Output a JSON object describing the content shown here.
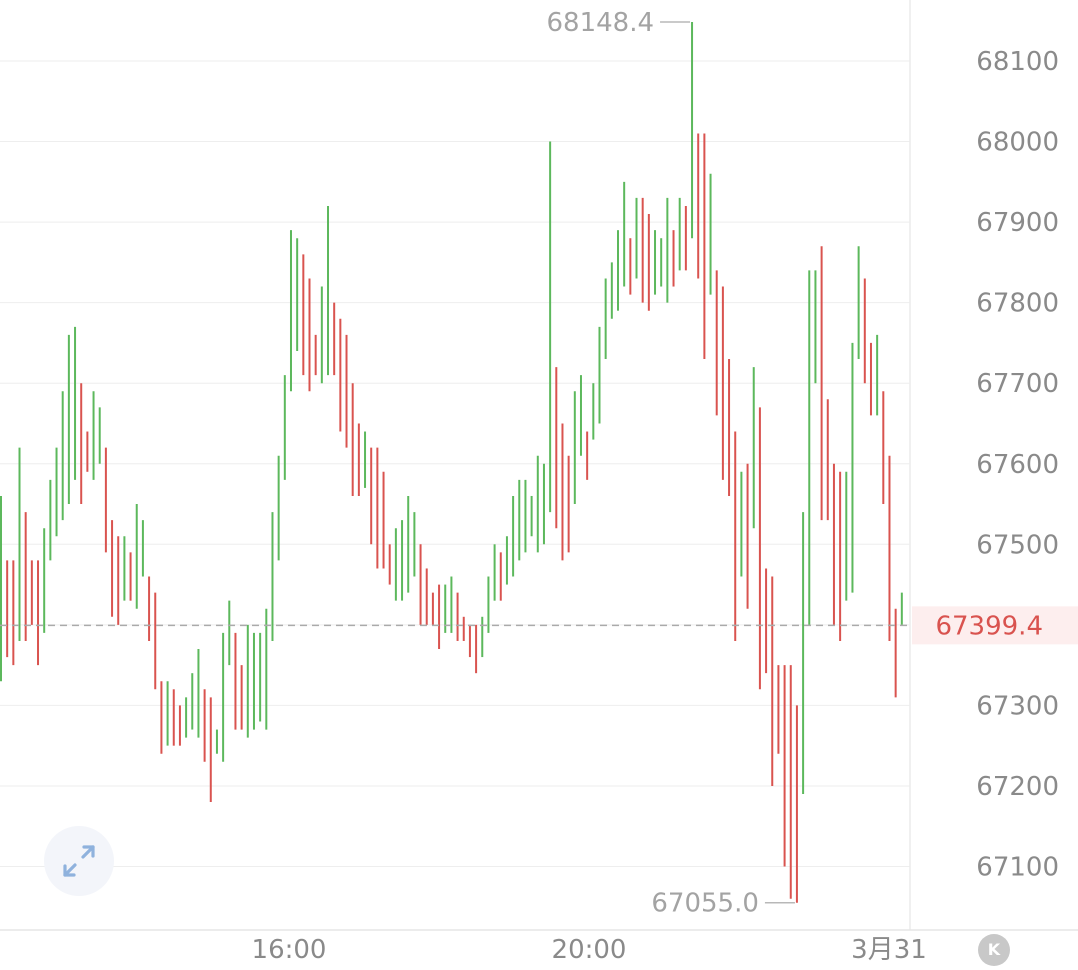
{
  "chart_data": {
    "type": "ohlc",
    "y_axis": {
      "position": "right",
      "ticks": [
        68100,
        68000,
        67900,
        67800,
        67700,
        67600,
        67500,
        67300,
        67200,
        67100
      ]
    },
    "x_axis": {
      "tick_labels": [
        "16:00",
        "20:00",
        "3月31"
      ]
    },
    "extremes": {
      "high_label": "68148.4",
      "low_label": "67055.0"
    },
    "last_price": {
      "label": "67399.4",
      "value": 67399.4
    },
    "colors": {
      "up": "#5cb85c",
      "down": "#d9534f",
      "grid": "#eeeeee",
      "axis_text": "#8a8a8a",
      "last_price": "#d9534f",
      "last_price_bg": "#fdeeee",
      "last_price_line": "#aaaaaa"
    },
    "bars": [
      {
        "t": 0,
        "h": 67560,
        "l": 67330
      },
      {
        "t": 1,
        "h": 67480,
        "l": 67360
      },
      {
        "t": 2,
        "h": 67480,
        "l": 67350
      },
      {
        "t": 3,
        "h": 67620,
        "l": 67380
      },
      {
        "t": 4,
        "h": 67540,
        "l": 67380
      },
      {
        "t": 5,
        "h": 67480,
        "l": 67400
      },
      {
        "t": 6,
        "h": 67480,
        "l": 67350
      },
      {
        "t": 7,
        "h": 67520,
        "l": 67390
      },
      {
        "t": 8,
        "h": 67580,
        "l": 67480
      },
      {
        "t": 9,
        "h": 67620,
        "l": 67510
      },
      {
        "t": 10,
        "h": 67690,
        "l": 67530
      },
      {
        "t": 11,
        "h": 67760,
        "l": 67550
      },
      {
        "t": 12,
        "h": 67770,
        "l": 67580
      },
      {
        "t": 13,
        "h": 67700,
        "l": 67550
      },
      {
        "t": 14,
        "h": 67640,
        "l": 67590
      },
      {
        "t": 15,
        "h": 67690,
        "l": 67580
      },
      {
        "t": 16,
        "h": 67670,
        "l": 67600
      },
      {
        "t": 17,
        "h": 67620,
        "l": 67490
      },
      {
        "t": 18,
        "h": 67530,
        "l": 67410
      },
      {
        "t": 19,
        "h": 67510,
        "l": 67400
      },
      {
        "t": 20,
        "h": 67510,
        "l": 67430
      },
      {
        "t": 21,
        "h": 67490,
        "l": 67430
      },
      {
        "t": 22,
        "h": 67550,
        "l": 67420
      },
      {
        "t": 23,
        "h": 67530,
        "l": 67460
      },
      {
        "t": 24,
        "h": 67460,
        "l": 67380
      },
      {
        "t": 25,
        "h": 67440,
        "l": 67320
      },
      {
        "t": 26,
        "h": 67330,
        "l": 67240
      },
      {
        "t": 27,
        "h": 67330,
        "l": 67250
      },
      {
        "t": 28,
        "h": 67320,
        "l": 67250
      },
      {
        "t": 29,
        "h": 67300,
        "l": 67250
      },
      {
        "t": 30,
        "h": 67310,
        "l": 67260
      },
      {
        "t": 31,
        "h": 67340,
        "l": 67270
      },
      {
        "t": 32,
        "h": 67370,
        "l": 67260
      },
      {
        "t": 33,
        "h": 67320,
        "l": 67230
      },
      {
        "t": 34,
        "h": 67310,
        "l": 67180
      },
      {
        "t": 35,
        "h": 67270,
        "l": 67240
      },
      {
        "t": 36,
        "h": 67390,
        "l": 67230
      },
      {
        "t": 37,
        "h": 67430,
        "l": 67350
      },
      {
        "t": 38,
        "h": 67390,
        "l": 67270
      },
      {
        "t": 39,
        "h": 67350,
        "l": 67270
      },
      {
        "t": 40,
        "h": 67400,
        "l": 67260
      },
      {
        "t": 41,
        "h": 67390,
        "l": 67270
      },
      {
        "t": 42,
        "h": 67390,
        "l": 67280
      },
      {
        "t": 43,
        "h": 67420,
        "l": 67270
      },
      {
        "t": 44,
        "h": 67540,
        "l": 67380
      },
      {
        "t": 45,
        "h": 67610,
        "l": 67480
      },
      {
        "t": 46,
        "h": 67710,
        "l": 67580
      },
      {
        "t": 47,
        "h": 67890,
        "l": 67690
      },
      {
        "t": 48,
        "h": 67880,
        "l": 67740
      },
      {
        "t": 49,
        "h": 67860,
        "l": 67710
      },
      {
        "t": 50,
        "h": 67830,
        "l": 67690
      },
      {
        "t": 51,
        "h": 67760,
        "l": 67710
      },
      {
        "t": 52,
        "h": 67820,
        "l": 67700
      },
      {
        "t": 53,
        "h": 67920,
        "l": 67710
      },
      {
        "t": 54,
        "h": 67800,
        "l": 67710
      },
      {
        "t": 55,
        "h": 67780,
        "l": 67640
      },
      {
        "t": 56,
        "h": 67760,
        "l": 67620
      },
      {
        "t": 57,
        "h": 67700,
        "l": 67560
      },
      {
        "t": 58,
        "h": 67650,
        "l": 67560
      },
      {
        "t": 59,
        "h": 67640,
        "l": 67570
      },
      {
        "t": 60,
        "h": 67620,
        "l": 67500
      },
      {
        "t": 61,
        "h": 67620,
        "l": 67470
      },
      {
        "t": 62,
        "h": 67590,
        "l": 67470
      },
      {
        "t": 63,
        "h": 67500,
        "l": 67450
      },
      {
        "t": 64,
        "h": 67520,
        "l": 67430
      },
      {
        "t": 65,
        "h": 67530,
        "l": 67430
      },
      {
        "t": 66,
        "h": 67560,
        "l": 67440
      },
      {
        "t": 67,
        "h": 67540,
        "l": 67460
      },
      {
        "t": 68,
        "h": 67500,
        "l": 67400
      },
      {
        "t": 69,
        "h": 67470,
        "l": 67400
      },
      {
        "t": 70,
        "h": 67440,
        "l": 67400
      },
      {
        "t": 71,
        "h": 67450,
        "l": 67370
      },
      {
        "t": 72,
        "h": 67450,
        "l": 67390
      },
      {
        "t": 73,
        "h": 67460,
        "l": 67390
      },
      {
        "t": 74,
        "h": 67440,
        "l": 67380
      },
      {
        "t": 75,
        "h": 67410,
        "l": 67380
      },
      {
        "t": 76,
        "h": 67400,
        "l": 67360
      },
      {
        "t": 77,
        "h": 67400,
        "l": 67340
      },
      {
        "t": 78,
        "h": 67410,
        "l": 67360
      },
      {
        "t": 79,
        "h": 67460,
        "l": 67390
      },
      {
        "t": 80,
        "h": 67500,
        "l": 67430
      },
      {
        "t": 81,
        "h": 67490,
        "l": 67430
      },
      {
        "t": 82,
        "h": 67510,
        "l": 67450
      },
      {
        "t": 83,
        "h": 67560,
        "l": 67460
      },
      {
        "t": 84,
        "h": 67580,
        "l": 67480
      },
      {
        "t": 85,
        "h": 67580,
        "l": 67490
      },
      {
        "t": 86,
        "h": 67560,
        "l": 67510
      },
      {
        "t": 87,
        "h": 67610,
        "l": 67490
      },
      {
        "t": 88,
        "h": 67600,
        "l": 67500
      },
      {
        "t": 89,
        "h": 68000,
        "l": 67540
      },
      {
        "t": 90,
        "h": 67720,
        "l": 67520
      },
      {
        "t": 91,
        "h": 67650,
        "l": 67480
      },
      {
        "t": 92,
        "h": 67610,
        "l": 67490
      },
      {
        "t": 93,
        "h": 67690,
        "l": 67550
      },
      {
        "t": 94,
        "h": 67710,
        "l": 67610
      },
      {
        "t": 95,
        "h": 67640,
        "l": 67580
      },
      {
        "t": 96,
        "h": 67700,
        "l": 67630
      },
      {
        "t": 97,
        "h": 67770,
        "l": 67650
      },
      {
        "t": 98,
        "h": 67830,
        "l": 67730
      },
      {
        "t": 99,
        "h": 67850,
        "l": 67780
      },
      {
        "t": 100,
        "h": 67890,
        "l": 67790
      },
      {
        "t": 101,
        "h": 67950,
        "l": 67820
      },
      {
        "t": 102,
        "h": 67880,
        "l": 67810
      },
      {
        "t": 103,
        "h": 67930,
        "l": 67830
      },
      {
        "t": 104,
        "h": 67930,
        "l": 67800
      },
      {
        "t": 105,
        "h": 67910,
        "l": 67790
      },
      {
        "t": 106,
        "h": 67890,
        "l": 67810
      },
      {
        "t": 107,
        "h": 67880,
        "l": 67820
      },
      {
        "t": 108,
        "h": 67930,
        "l": 67800
      },
      {
        "t": 109,
        "h": 67890,
        "l": 67820
      },
      {
        "t": 110,
        "h": 67930,
        "l": 67840
      },
      {
        "t": 111,
        "h": 67920,
        "l": 67840
      },
      {
        "t": 112,
        "h": 68148.4,
        "l": 67880
      },
      {
        "t": 113,
        "h": 68010,
        "l": 67830
      },
      {
        "t": 114,
        "h": 68010,
        "l": 67730
      },
      {
        "t": 115,
        "h": 67960,
        "l": 67810
      },
      {
        "t": 116,
        "h": 67840,
        "l": 67660
      },
      {
        "t": 117,
        "h": 67820,
        "l": 67580
      },
      {
        "t": 118,
        "h": 67730,
        "l": 67560
      },
      {
        "t": 119,
        "h": 67640,
        "l": 67380
      },
      {
        "t": 120,
        "h": 67590,
        "l": 67460
      },
      {
        "t": 121,
        "h": 67600,
        "l": 67420
      },
      {
        "t": 122,
        "h": 67720,
        "l": 67520
      },
      {
        "t": 123,
        "h": 67670,
        "l": 67320
      },
      {
        "t": 124,
        "h": 67470,
        "l": 67340
      },
      {
        "t": 125,
        "h": 67460,
        "l": 67200
      },
      {
        "t": 126,
        "h": 67350,
        "l": 67240
      },
      {
        "t": 127,
        "h": 67350,
        "l": 67100
      },
      {
        "t": 128,
        "h": 67350,
        "l": 67060
      },
      {
        "t": 129,
        "h": 67300,
        "l": 67055.0
      },
      {
        "t": 130,
        "h": 67540,
        "l": 67190
      },
      {
        "t": 131,
        "h": 67840,
        "l": 67400
      },
      {
        "t": 132,
        "h": 67840,
        "l": 67700
      },
      {
        "t": 133,
        "h": 67870,
        "l": 67530
      },
      {
        "t": 134,
        "h": 67680,
        "l": 67530
      },
      {
        "t": 135,
        "h": 67600,
        "l": 67400
      },
      {
        "t": 136,
        "h": 67590,
        "l": 67380
      },
      {
        "t": 137,
        "h": 67590,
        "l": 67430
      },
      {
        "t": 138,
        "h": 67750,
        "l": 67440
      },
      {
        "t": 139,
        "h": 67870,
        "l": 67730
      },
      {
        "t": 140,
        "h": 67830,
        "l": 67700
      },
      {
        "t": 141,
        "h": 67750,
        "l": 67660
      },
      {
        "t": 142,
        "h": 67760,
        "l": 67660
      },
      {
        "t": 143,
        "h": 67690,
        "l": 67550
      },
      {
        "t": 144,
        "h": 67610,
        "l": 67380
      },
      {
        "t": 145,
        "h": 67420,
        "l": 67310
      },
      {
        "t": 146,
        "h": 67440,
        "l": 67400
      }
    ]
  },
  "controls": {
    "expand_icon": "expand-arrows-icon",
    "kline_icon": "kline-icon",
    "kline_label": "K"
  }
}
